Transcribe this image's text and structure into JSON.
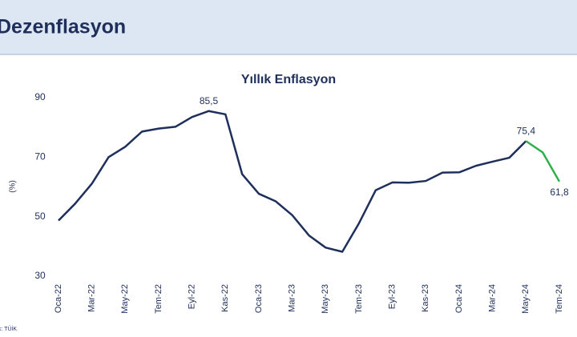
{
  "header": {
    "title": "Dezenflasyon"
  },
  "source": "Kaynak: TÜİK",
  "chart_data": {
    "type": "line",
    "title": "Yıllık Enflasyon",
    "y_label": "(%)",
    "categories": [
      "Oca-22",
      null,
      "Mar-22",
      null,
      "May-22",
      null,
      "Tem-22",
      null,
      "Eyl-22",
      null,
      "Kas-22",
      null,
      "Oca-23",
      null,
      "Mar-23",
      null,
      "May-23",
      null,
      "Tem-23",
      null,
      "Eyl-23",
      null,
      "Kas-23",
      null,
      "Oca-24",
      null,
      "Mar-24",
      null,
      "May-24",
      null,
      "Tem-24"
    ],
    "series": [
      {
        "color": "#1f2f5c",
        "values": [
          48.7,
          54.4,
          61.1,
          70.0,
          73.5,
          78.6,
          79.6,
          80.2,
          83.5,
          85.5,
          84.4,
          64.3,
          57.7,
          55.2,
          50.5,
          43.7,
          39.6,
          38.2,
          47.8,
          58.9,
          61.5,
          61.4,
          62.0,
          64.8,
          64.9,
          67.1,
          68.5,
          69.8,
          75.4,
          null,
          null
        ],
        "value_labels": [
          null,
          null,
          null,
          null,
          null,
          null,
          null,
          null,
          null,
          "85,5",
          null,
          null,
          null,
          null,
          null,
          null,
          null,
          null,
          null,
          null,
          null,
          null,
          null,
          null,
          null,
          null,
          null,
          null,
          "75,4",
          null,
          null
        ]
      },
      {
        "color": "#2db04b",
        "values": [
          null,
          null,
          null,
          null,
          null,
          null,
          null,
          null,
          null,
          null,
          null,
          null,
          null,
          null,
          null,
          null,
          null,
          null,
          null,
          null,
          null,
          null,
          null,
          null,
          null,
          null,
          null,
          null,
          75.4,
          71.6,
          61.8
        ],
        "value_labels": [
          null,
          null,
          null,
          null,
          null,
          null,
          null,
          null,
          null,
          null,
          null,
          null,
          null,
          null,
          null,
          null,
          null,
          null,
          null,
          null,
          null,
          null,
          null,
          null,
          null,
          null,
          null,
          null,
          null,
          null,
          "61,8"
        ]
      }
    ],
    "ylim": [
      30,
      90
    ],
    "yticks": [
      30,
      50,
      70,
      90
    ],
    "grid": false
  }
}
